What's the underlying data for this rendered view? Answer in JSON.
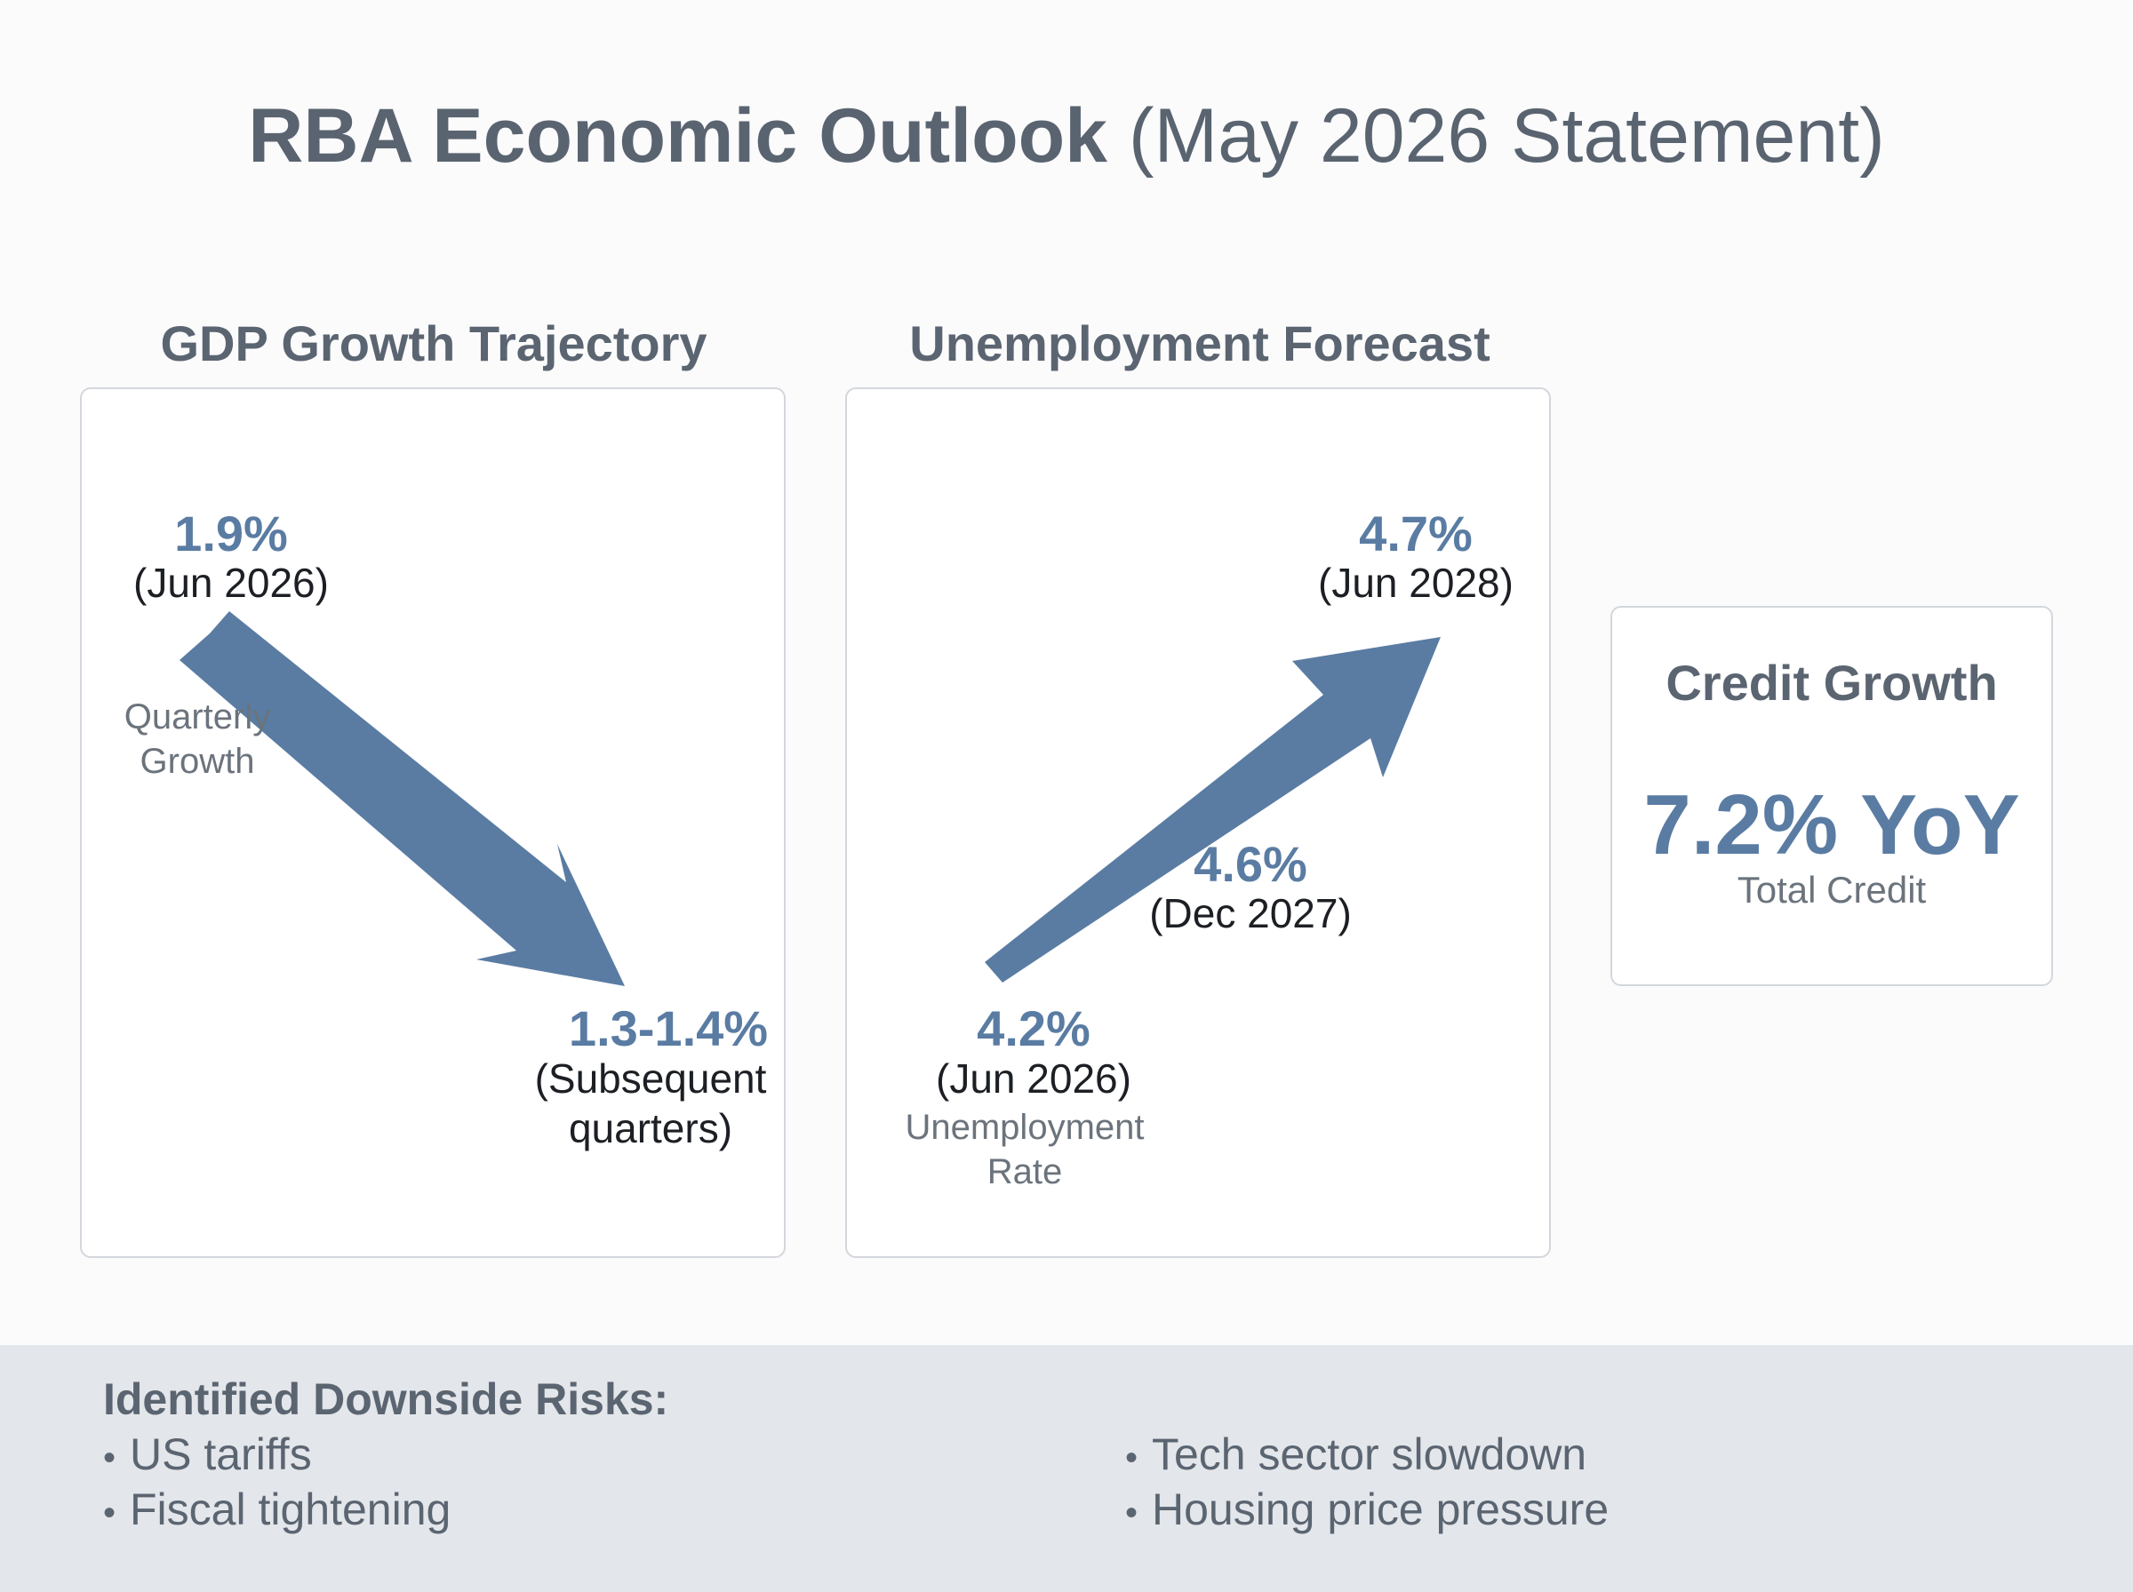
{
  "title": {
    "strong": "RBA Economic Outlook",
    "light": "(May 2026 Statement)"
  },
  "colors": {
    "accent": "#5a7ca3",
    "heading": "#5b6571",
    "band": "#e3e6ea"
  },
  "gdp": {
    "title": "GDP Growth Trajectory",
    "start_value": "1.9%",
    "start_period": "(Jun 2026)",
    "note_line1": "Quarterly",
    "note_line2": "Growth",
    "end_value": "1.3-1.4%",
    "end_period_line1": "(Subsequent",
    "end_period_line2": "quarters)"
  },
  "unemployment": {
    "title": "Unemployment Forecast",
    "start_value": "4.2%",
    "start_period": "(Jun 2026)",
    "note_line1": "Unemployment",
    "note_line2": "Rate",
    "mid_value": "4.6%",
    "mid_period": "(Dec 2027)",
    "end_value": "4.7%",
    "end_period": "(Jun 2028)"
  },
  "credit": {
    "title": "Credit Growth",
    "value": "7.2% YoY",
    "subtitle": "Total Credit"
  },
  "risks": {
    "title": "Identified Downside Risks:",
    "bullet": "•",
    "items": [
      "US tariffs",
      "Fiscal tightening",
      "Tech sector slowdown",
      "Housing price pressure"
    ]
  }
}
